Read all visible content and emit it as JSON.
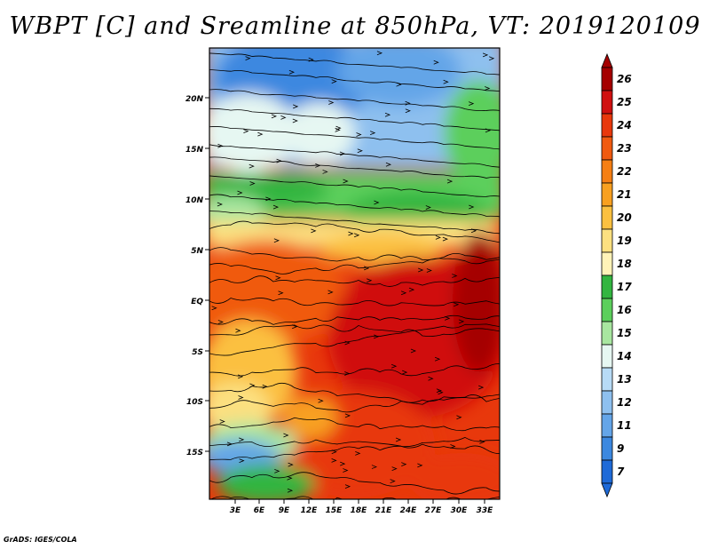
{
  "title": "WBPT [C] and Sreamline at 850hPa, VT: 2019120109",
  "footer": "GrADS: IGES/COLA",
  "map": {
    "lat_labels": [
      "20N",
      "15N",
      "10N",
      "5N",
      "EQ",
      "5S",
      "10S",
      "15S"
    ],
    "lon_labels": [
      "3E",
      "6E",
      "9E",
      "12E",
      "15E",
      "18E",
      "21E",
      "24E",
      "27E",
      "30E",
      "33E"
    ]
  },
  "colorbar": {
    "levels": [
      "26",
      "25",
      "24",
      "23",
      "22",
      "21",
      "20",
      "19",
      "18",
      "17",
      "16",
      "15",
      "14",
      "13",
      "12",
      "11",
      "9",
      "7"
    ],
    "colors": [
      "#a50000",
      "#d01010",
      "#e8380c",
      "#f05a10",
      "#f57f14",
      "#f8a020",
      "#fbc040",
      "#fce080",
      "#fff3b8",
      "#33b540",
      "#5ccf5c",
      "#a8e6a0",
      "#e6f7f2",
      "#b7dbf6",
      "#8ec0ef",
      "#64a5e8",
      "#3c88e0",
      "#1e6ad8"
    ]
  }
}
